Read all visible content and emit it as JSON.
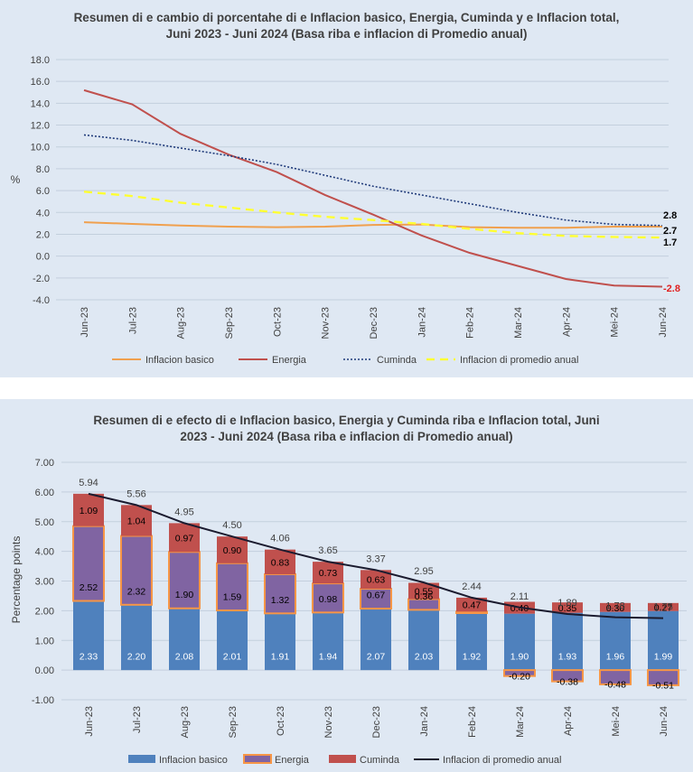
{
  "chart_data": [
    {
      "type": "line",
      "title_line1": "Resumen di e cambio di porcentahe di e Inflacion basico, Energia, Cuminda y e Inflacion total,",
      "title_line2": "Juni 2023 - Juni 2024 (Basa riba e inflacion di Promedio anual)",
      "ylabel": "%",
      "ylim": [
        -4.0,
        18.0
      ],
      "yticks": [
        "18.0",
        "16.0",
        "14.0",
        "12.0",
        "10.0",
        "8.0",
        "6.0",
        "4.0",
        "2.0",
        "0.0",
        "-2.0",
        "-4.0"
      ],
      "categories": [
        "Jun-23",
        "Jul-23",
        "Aug-23",
        "Sep-23",
        "Oct-23",
        "Nov-23",
        "Dec-23",
        "Jan-24",
        "Feb-24",
        "Mar-24",
        "Apr-24",
        "Mei-24",
        "Jun-24"
      ],
      "series": [
        {
          "name": "Inflacion basico",
          "color": "#f0a04e",
          "style": "solid",
          "values": [
            3.1,
            2.95,
            2.8,
            2.7,
            2.65,
            2.7,
            2.85,
            2.9,
            2.65,
            2.6,
            2.6,
            2.7,
            2.7
          ]
        },
        {
          "name": "Energia",
          "color": "#c0504d",
          "style": "solid",
          "values": [
            15.2,
            13.9,
            11.2,
            9.3,
            7.7,
            5.6,
            3.8,
            1.9,
            0.3,
            -0.9,
            -2.1,
            -2.7,
            -2.8
          ]
        },
        {
          "name": "Cuminda",
          "color": "#1f3a7a",
          "style": "dotted",
          "values": [
            11.1,
            10.6,
            9.9,
            9.2,
            8.4,
            7.4,
            6.4,
            5.6,
            4.8,
            4.0,
            3.3,
            2.9,
            2.8
          ]
        },
        {
          "name": "Inflacion di promedio anual",
          "color": "#ffff33",
          "style": "dashed",
          "values": [
            5.9,
            5.5,
            4.9,
            4.45,
            4.0,
            3.6,
            3.3,
            2.95,
            2.5,
            2.1,
            1.85,
            1.75,
            1.7
          ]
        }
      ],
      "end_labels": [
        {
          "text": "2.8",
          "color": "#000000"
        },
        {
          "text": "2.7",
          "color": "#000000"
        },
        {
          "text": "1.7",
          "color": "#000000"
        },
        {
          "text": "-2.8",
          "color": "#e02020"
        }
      ],
      "legend": [
        "Inflacion basico",
        "Energia",
        "Cuminda",
        "Inflacion di promedio anual"
      ],
      "legend_position": "bottom",
      "grid": true
    },
    {
      "type": "bar",
      "stacked": true,
      "title_line1": "Resumen di e efecto di e Inflacion basico, Energia y Cuminda riba e Inflacion total, Juni",
      "title_line2": "2023 - Juni 2024 (Basa riba e inflacion di Promedio anual)",
      "ylabel": "Percentage points",
      "ylim": [
        -1.0,
        7.0
      ],
      "yticks": [
        "7.00",
        "6.00",
        "5.00",
        "4.00",
        "3.00",
        "2.00",
        "1.00",
        "0.00",
        "-1.00"
      ],
      "categories": [
        "Jun-23",
        "Jul-23",
        "Aug-23",
        "Sep-23",
        "Oct-23",
        "Nov-23",
        "Dec-23",
        "Jan-24",
        "Feb-24",
        "Mar-24",
        "Apr-24",
        "Mei-24",
        "Jun-24"
      ],
      "series": [
        {
          "name": "Inflacion basico",
          "color": "#4f81bd",
          "values": [
            2.33,
            2.2,
            2.08,
            2.01,
            1.91,
            1.94,
            2.07,
            2.03,
            1.92,
            1.9,
            1.93,
            1.96,
            1.99
          ],
          "labels": [
            "2.33",
            "2.20",
            "2.08",
            "2.01",
            "1.91",
            "1.94",
            "2.07",
            "2.03",
            "1.92",
            "1.90",
            "1.93",
            "1.96",
            "1.99"
          ]
        },
        {
          "name": "Energia",
          "color": "#8064a2",
          "border": "#f79646",
          "values": [
            2.52,
            2.32,
            1.9,
            1.59,
            1.32,
            0.98,
            0.67,
            0.36,
            0.05,
            -0.2,
            -0.38,
            -0.48,
            -0.51
          ],
          "labels": [
            "2.52",
            "2.32",
            "1.90",
            "1.59",
            "1.32",
            "0.98",
            "0.67",
            "0.36",
            "",
            "-0.20",
            "-0.38",
            "-0.48",
            "-0.51"
          ]
        },
        {
          "name": "Cuminda",
          "color": "#c0504d",
          "values": [
            1.09,
            1.04,
            0.97,
            0.9,
            0.83,
            0.73,
            0.63,
            0.55,
            0.47,
            0.4,
            0.35,
            0.3,
            0.27
          ],
          "labels": [
            "1.09",
            "1.04",
            "0.97",
            "0.90",
            "0.83",
            "0.73",
            "0.63",
            "0.55",
            "0.47",
            "0.40",
            "0.35",
            "0.30",
            "0.27"
          ]
        },
        {
          "name": "Inflacion di promedio anual",
          "color": "#1b1b2f",
          "type": "line",
          "values": [
            5.94,
            5.56,
            4.95,
            4.5,
            4.06,
            3.65,
            3.37,
            2.95,
            2.44,
            2.11,
            1.89,
            1.78,
            1.75
          ],
          "labels": [
            "5.94",
            "5.56",
            "4.95",
            "4.50",
            "4.06",
            "3.65",
            "3.37",
            "2.95",
            "2.44",
            "2.11",
            "1.89",
            "1.78",
            "1.75"
          ]
        }
      ],
      "legend": [
        "Inflacion basico",
        "Energia",
        "Cuminda",
        "Inflacion di promedio anual"
      ],
      "legend_position": "bottom",
      "grid": true
    }
  ]
}
